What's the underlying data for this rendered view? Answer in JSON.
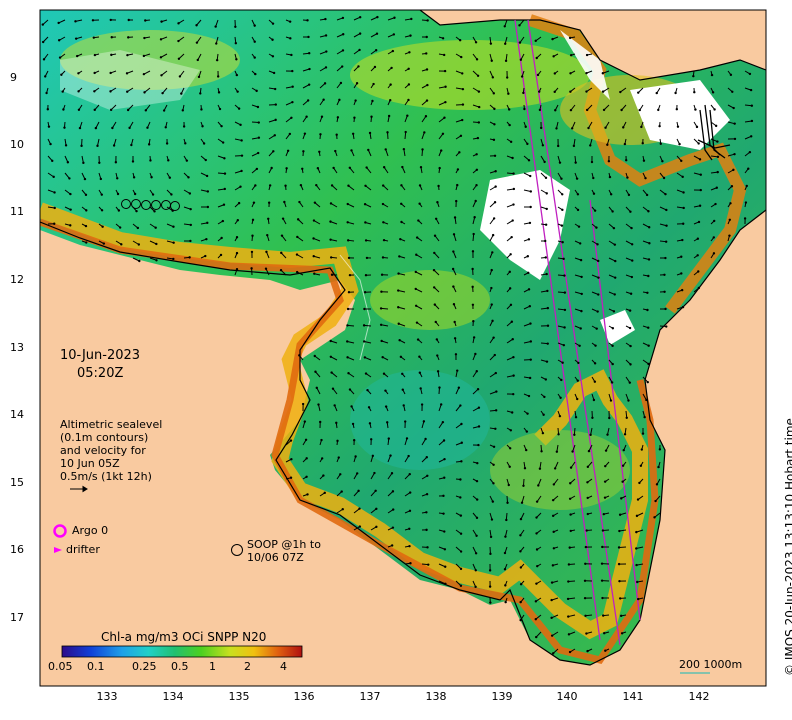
{
  "map": {
    "date": "10-Jun-2023",
    "time": "05:20Z",
    "altimetry_legend": [
      "Altimetric sealevel",
      "(0.1m contours)",
      "and velocity for",
      "10 Jun 05Z",
      "0.5m/s (1kt 12h)"
    ],
    "argo_label": "Argo 0",
    "drifter_label": "drifter",
    "soop_label": [
      "SOOP @1h to",
      "10/06 07Z"
    ],
    "colorbar_title": "Chl-a mg/m3 OCi SNPP N20",
    "colorbar_ticks": [
      "0.05",
      "0.1",
      "0.25",
      "0.5",
      "1",
      "2",
      "4"
    ],
    "colorbar_stops": [
      "#2b0a8a",
      "#1040d8",
      "#1fa0e8",
      "#20d0c8",
      "#22c070",
      "#4cd020",
      "#c8e020",
      "#f0c010",
      "#e06010",
      "#b01010"
    ],
    "scale_label": "200  1000m",
    "copyright": "© IMOS 20-Jun-2023 13:13:10 Hobart time",
    "lat_ticks": [
      "9",
      "10",
      "11",
      "12",
      "13",
      "14",
      "15",
      "16",
      "17"
    ],
    "lon_ticks": [
      "133",
      "134",
      "135",
      "136",
      "137",
      "138",
      "139",
      "140",
      "141",
      "142"
    ],
    "colors": {
      "land": "#f9caa0",
      "coast": "#000000",
      "argo": "#ff00ff",
      "track": "#c020c0"
    }
  }
}
